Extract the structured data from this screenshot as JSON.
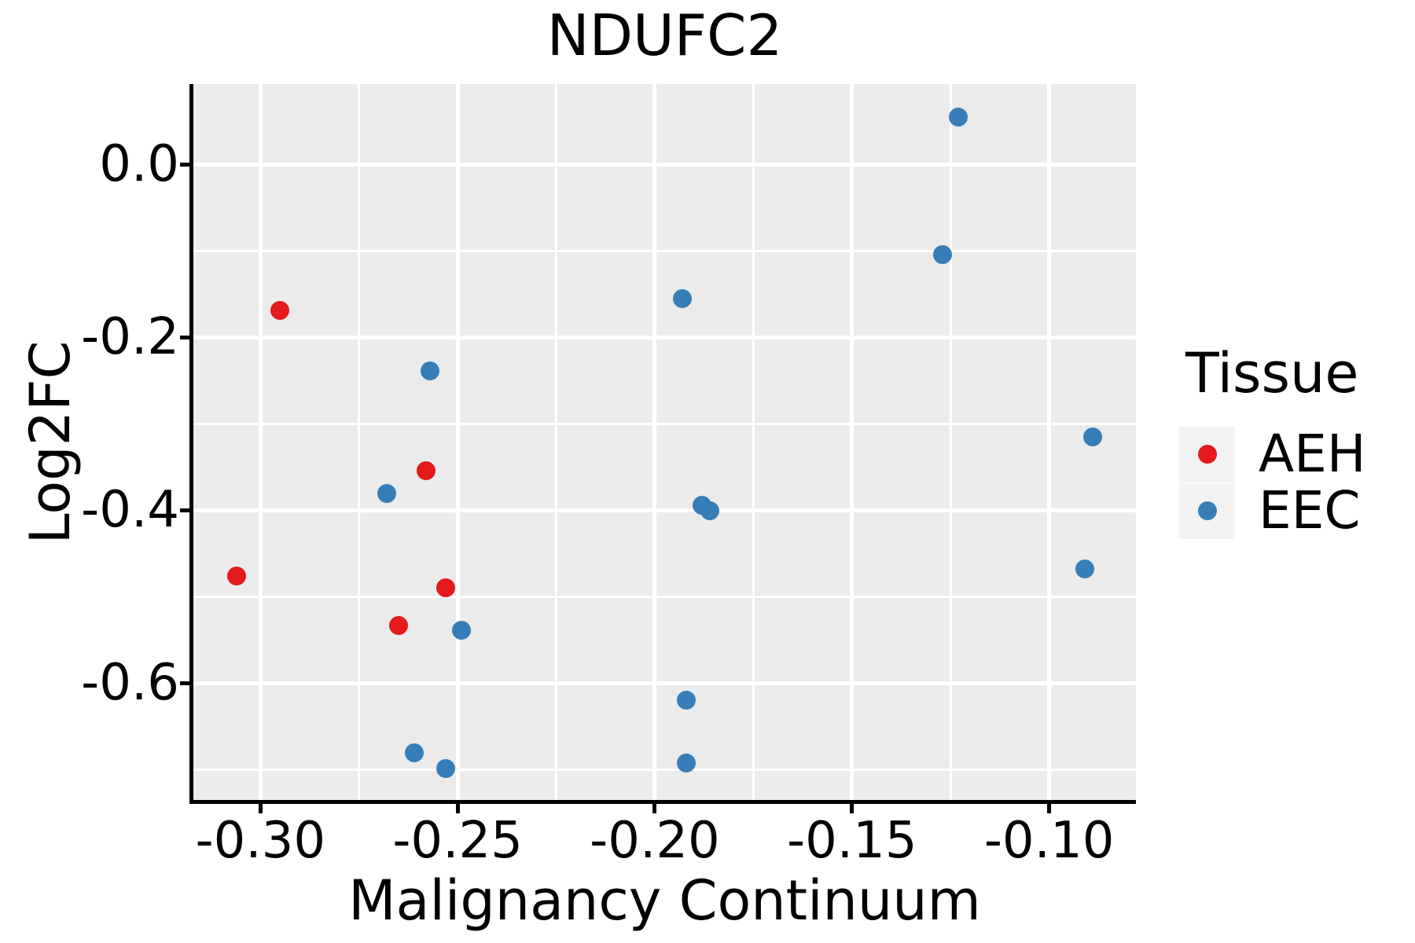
{
  "chart_data": {
    "type": "scatter",
    "title": "NDUFC2",
    "xlabel": "Malignancy Continuum",
    "ylabel": "Log2FC",
    "xlim": [
      -0.317,
      -0.078
    ],
    "ylim": [
      -0.737,
      0.093
    ],
    "grid": "major and minor white gridlines on gray panel",
    "legend_position": "right",
    "x_ticks": {
      "values": [
        -0.3,
        -0.25,
        -0.2,
        -0.15,
        -0.1
      ],
      "labels": [
        "-0.30",
        "-0.25",
        "-0.20",
        "-0.15",
        "-0.10"
      ],
      "minor": [
        -0.275,
        -0.225,
        -0.175,
        -0.125
      ]
    },
    "y_ticks": {
      "values": [
        0.0,
        -0.2,
        -0.4,
        -0.6
      ],
      "labels": [
        "0.0",
        "-0.2",
        "-0.4",
        "-0.6"
      ],
      "minor": [
        -0.1,
        -0.3,
        -0.5,
        -0.7
      ]
    },
    "series": [
      {
        "name": "AEH",
        "color": "#e41a1c",
        "points": [
          [
            -0.295,
            -0.169
          ],
          [
            -0.258,
            -0.354
          ],
          [
            -0.306,
            -0.476
          ],
          [
            -0.253,
            -0.49
          ],
          [
            -0.265,
            -0.533
          ]
        ]
      },
      {
        "name": "EEC",
        "color": "#377eb8",
        "points": [
          [
            -0.123,
            0.055
          ],
          [
            -0.127,
            -0.104
          ],
          [
            -0.193,
            -0.155
          ],
          [
            -0.257,
            -0.239
          ],
          [
            -0.268,
            -0.381
          ],
          [
            -0.188,
            -0.394
          ],
          [
            -0.186,
            -0.401
          ],
          [
            -0.089,
            -0.315
          ],
          [
            -0.091,
            -0.468
          ],
          [
            -0.249,
            -0.539
          ],
          [
            -0.192,
            -0.62
          ],
          [
            -0.261,
            -0.681
          ],
          [
            -0.192,
            -0.692
          ],
          [
            -0.253,
            -0.699
          ]
        ]
      }
    ]
  },
  "legend": {
    "title": "Tissue",
    "entries": [
      {
        "label": "AEH",
        "color": "#e41a1c"
      },
      {
        "label": "EEC",
        "color": "#377eb8"
      }
    ]
  },
  "colors": {
    "panel_bg": "#ebebeb",
    "grid": "#ffffff",
    "axis": "#000000",
    "legend_key_bg": "#f2f2f2"
  }
}
